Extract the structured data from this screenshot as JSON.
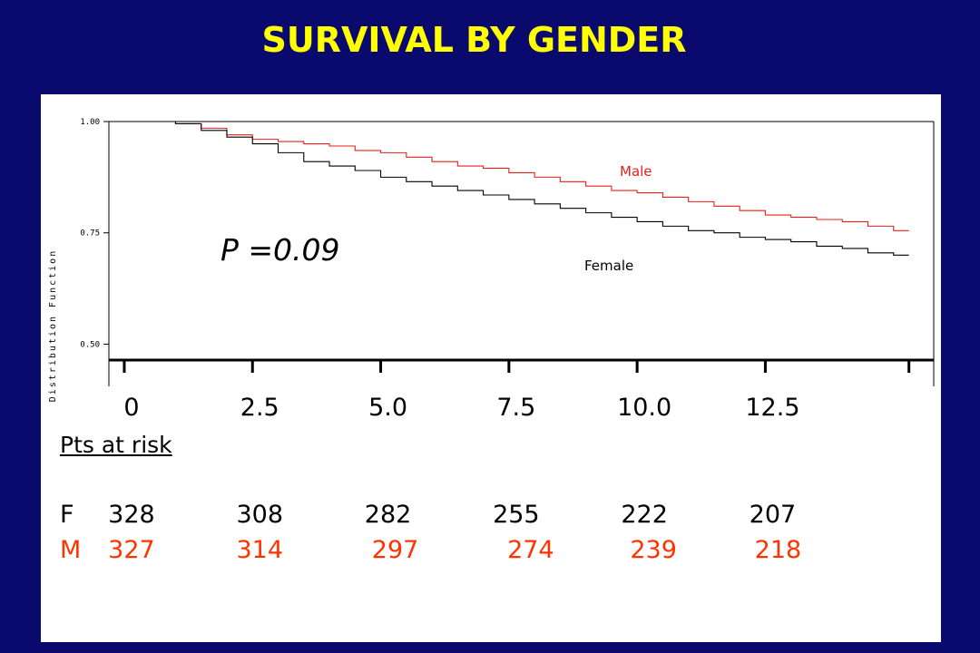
{
  "slide": {
    "title": "SURVIVAL BY GENDER"
  },
  "colors": {
    "background": "#0a0a6e",
    "title": "#ffff00",
    "male": "#e8201a",
    "female": "#000000",
    "male_counts": "#ff3300"
  },
  "chart_data": {
    "type": "line",
    "ylabel": "Distribution Function",
    "ylim": [
      0.45,
      1.0
    ],
    "xlim": [
      -0.3,
      15.5
    ],
    "y_ticks": [
      "1.00",
      "0.75",
      "0.50"
    ],
    "y_tick_values": [
      1.0,
      0.75,
      0.5
    ],
    "x_ticks": [
      "0",
      "2.5",
      "5.0",
      "7.5",
      "10.0",
      "12.5"
    ],
    "x_tick_values": [
      0,
      2.5,
      5.0,
      7.5,
      10.0,
      12.5
    ],
    "annotation": "P =0.09",
    "series": [
      {
        "name": "Male",
        "x": [
          0,
          1.0,
          1.5,
          2.0,
          2.5,
          3.0,
          3.5,
          4.0,
          4.5,
          5.0,
          5.5,
          6.0,
          6.5,
          7.0,
          7.5,
          8.0,
          8.5,
          9.0,
          9.5,
          10.0,
          10.5,
          11.0,
          11.5,
          12.0,
          12.5,
          13.0,
          13.5,
          14.0,
          14.5,
          15.0
        ],
        "y": [
          1.0,
          0.995,
          0.985,
          0.97,
          0.96,
          0.955,
          0.95,
          0.945,
          0.935,
          0.93,
          0.92,
          0.91,
          0.9,
          0.895,
          0.885,
          0.875,
          0.865,
          0.855,
          0.845,
          0.84,
          0.83,
          0.82,
          0.81,
          0.8,
          0.79,
          0.785,
          0.78,
          0.775,
          0.765,
          0.755
        ]
      },
      {
        "name": "Female",
        "x": [
          0,
          1.0,
          1.5,
          2.0,
          2.5,
          3.0,
          3.5,
          4.0,
          4.5,
          5.0,
          5.5,
          6.0,
          6.5,
          7.0,
          7.5,
          8.0,
          8.5,
          9.0,
          9.5,
          10.0,
          10.5,
          11.0,
          11.5,
          12.0,
          12.5,
          13.0,
          13.5,
          14.0,
          14.5,
          15.0
        ],
        "y": [
          1.0,
          0.995,
          0.98,
          0.965,
          0.95,
          0.93,
          0.91,
          0.9,
          0.89,
          0.875,
          0.865,
          0.855,
          0.845,
          0.835,
          0.825,
          0.815,
          0.805,
          0.795,
          0.785,
          0.775,
          0.765,
          0.755,
          0.75,
          0.74,
          0.735,
          0.73,
          0.72,
          0.715,
          0.705,
          0.7
        ]
      }
    ],
    "at_risk": {
      "title": "Pts at risk",
      "rows": [
        {
          "label": "F",
          "values": [
            "328",
            "308",
            "282",
            "255",
            "222",
            "207"
          ]
        },
        {
          "label": "M",
          "values": [
            "327",
            "314",
            "297",
            "274",
            "239",
            "218"
          ]
        }
      ]
    }
  }
}
